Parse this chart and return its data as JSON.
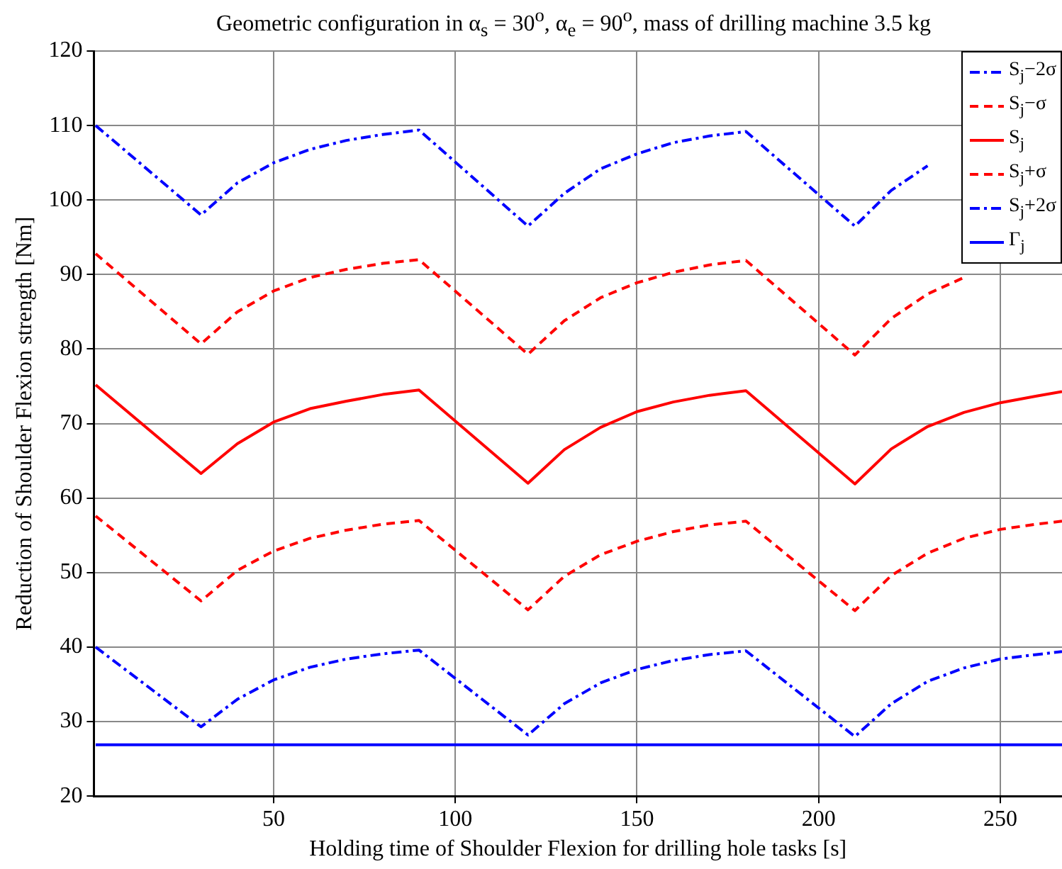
{
  "chart_data": {
    "type": "line",
    "title": "Geometric configuration in α$_{s}$ = 30$^{o}$, α$_{e}$ = 90$^{o}$, mass of drilling machine 3.5 kg",
    "xlabel": "Holding time of Shoulder Flexion for drilling hole tasks [s]",
    "ylabel": "Reduction of Shoulder Flexion strength [Nm]",
    "x": [
      1,
      30,
      40,
      50,
      60,
      70,
      80,
      90,
      120,
      130,
      140,
      150,
      160,
      170,
      180,
      210,
      220,
      230,
      240,
      250,
      260,
      267
    ],
    "series": [
      {
        "name": "S$_{j}$−2σ",
        "color": "#0000ff",
        "line_style": "dashdot",
        "values": [
          110,
          98,
          102.3,
          105,
          106.8,
          108,
          108.8,
          109.4,
          96.5,
          100.9,
          104.2,
          106.2,
          107.7,
          108.6,
          109.2,
          96.5,
          101.3,
          104.6,
          null,
          null,
          null,
          null
        ]
      },
      {
        "name": "S$_{j}$−σ",
        "color": "#ff0000",
        "line_style": "dashed",
        "values": [
          92.8,
          80.7,
          85,
          87.8,
          89.6,
          90.7,
          91.5,
          92,
          79.3,
          83.8,
          86.9,
          88.9,
          90.3,
          91.3,
          91.9,
          79.2,
          84.1,
          87.4,
          89.6,
          null,
          null,
          null
        ]
      },
      {
        "name": "S$_{j}$",
        "color": "#ff0000",
        "line_style": "solid",
        "values": [
          75.2,
          63.3,
          67.3,
          70.2,
          72,
          73,
          73.9,
          74.5,
          62,
          66.5,
          69.5,
          71.6,
          72.9,
          73.8,
          74.4,
          61.9,
          66.6,
          69.6,
          71.5,
          72.8,
          73.7,
          74.3
        ]
      },
      {
        "name": "S$_{j}$+σ",
        "color": "#ff0000",
        "line_style": "dashed",
        "values": [
          57.6,
          46.2,
          50.3,
          52.9,
          54.6,
          55.7,
          56.5,
          57,
          45,
          49.5,
          52.4,
          54.2,
          55.5,
          56.4,
          56.9,
          44.9,
          49.6,
          52.6,
          54.6,
          55.8,
          56.5,
          56.9
        ]
      },
      {
        "name": "S$_{j}$+2σ",
        "color": "#0000ff",
        "line_style": "dashdot",
        "values": [
          40,
          29.3,
          33,
          35.6,
          37.3,
          38.4,
          39.1,
          39.6,
          28.2,
          32.4,
          35.2,
          37,
          38.2,
          39,
          39.5,
          28,
          32.4,
          35.4,
          37.2,
          38.4,
          39,
          39.4
        ]
      },
      {
        "name": "Γ$_{j}$",
        "color": "#0000ff",
        "line_style": "solid",
        "values": [
          26.9,
          26.9,
          26.9,
          26.9,
          26.9,
          26.9,
          26.9,
          26.9,
          26.9,
          26.9,
          26.9,
          26.9,
          26.9,
          26.9,
          26.9,
          26.9,
          26.9,
          26.9,
          26.9,
          26.9,
          26.9,
          26.9
        ]
      }
    ],
    "xlim": [
      0.5,
      267
    ],
    "xticks": [
      50,
      100,
      150,
      200,
      250
    ],
    "ylim": [
      20,
      120
    ],
    "yticks": [
      20,
      30,
      40,
      50,
      60,
      70,
      80,
      90,
      100,
      110,
      120
    ],
    "grid": true,
    "legend": "top right",
    "marker": "none"
  }
}
